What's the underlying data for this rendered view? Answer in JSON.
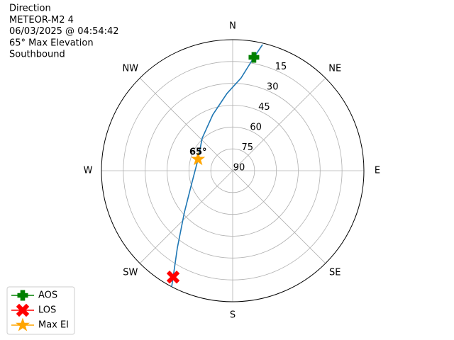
{
  "chart_data": {
    "type": "polar",
    "title_lines": [
      "Direction",
      "METEOR-M2 4",
      "06/03/2025 @ 04:54:42",
      "65° Max Elevation",
      "Southbound"
    ],
    "theta_direction": "clockwise",
    "theta_zero": "N",
    "thetaticks": [
      {
        "value": 0,
        "label": "N"
      },
      {
        "value": 45,
        "label": "NE"
      },
      {
        "value": 90,
        "label": "E"
      },
      {
        "value": 135,
        "label": "SE"
      },
      {
        "value": 180,
        "label": "S"
      },
      {
        "value": 225,
        "label": "SW"
      },
      {
        "value": 270,
        "label": "W"
      },
      {
        "value": 315,
        "label": "NW"
      }
    ],
    "rlim": [
      90,
      0
    ],
    "rticks": [
      90,
      75,
      60,
      45,
      30,
      15
    ],
    "grid": true,
    "legend": "lower left",
    "series": [
      {
        "color": "#1f77b4",
        "theta": [
          13.3,
          10.6,
          5.2,
          355.8,
          340.5,
          316.9,
          288.4,
          251.9,
          229.1,
          215.6,
          209.2,
          207.7
        ],
        "r": [
          1.0,
          10.8,
          26.0,
          36.8,
          49.2,
          59.4,
          65.0,
          60.3,
          46.2,
          24.8,
          6.3,
          0.0
        ]
      },
      {
        "name": "AOS",
        "color": "green",
        "marker": "plus",
        "theta": [
          10.6
        ],
        "r": [
          10.8
        ]
      },
      {
        "name": "LOS",
        "color": "red",
        "marker": "x",
        "theta": [
          209.2
        ],
        "r": [
          6.3
        ]
      },
      {
        "name": "Max El",
        "color": "orange",
        "marker": "star",
        "theta": [
          288.4
        ],
        "r": [
          65
        ],
        "value_labels": [
          "65°"
        ]
      }
    ]
  }
}
